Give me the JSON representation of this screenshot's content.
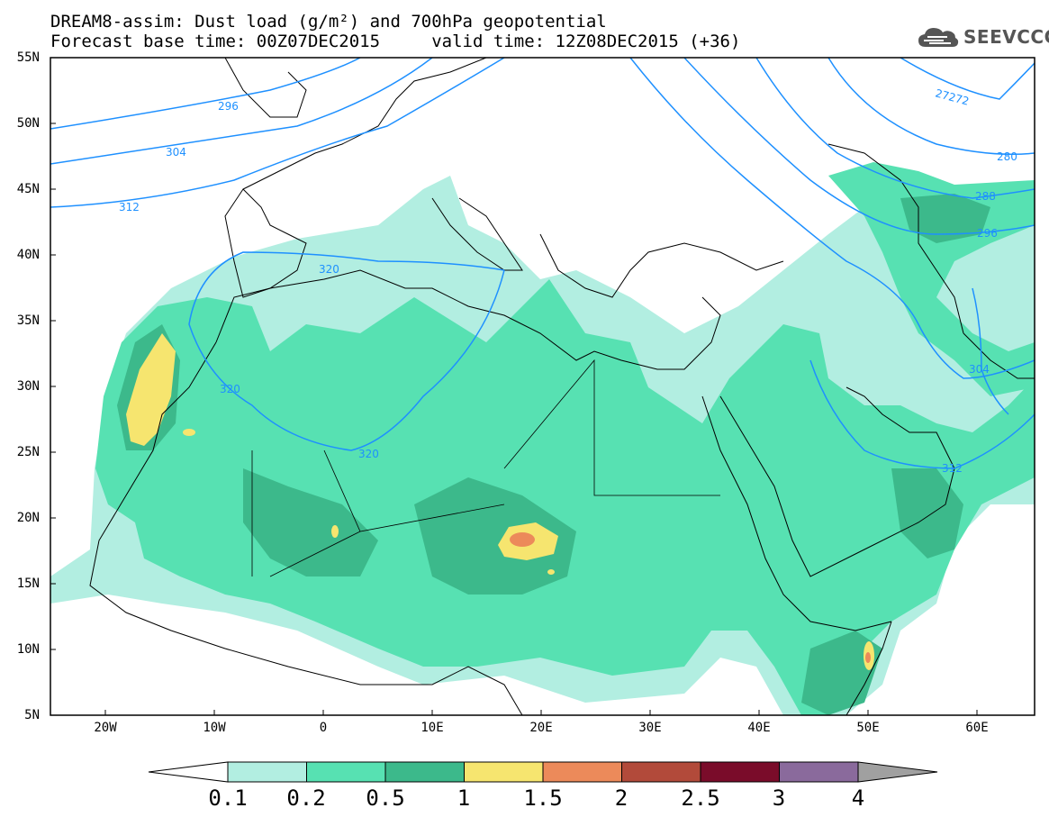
{
  "title": {
    "line1": "DREAM8-assim: Dust load (g/m²) and 700hPa geopotential",
    "line2": "Forecast base time: 00Z07DEC2015     valid time: 12Z08DEC2015 (+36)"
  },
  "logo": {
    "text": "SEEVCCC",
    "icon": "cloud-icon"
  },
  "axes": {
    "lat_labels": [
      "55N",
      "50N",
      "45N",
      "40N",
      "35N",
      "30N",
      "25N",
      "20N",
      "15N",
      "10N",
      "5N"
    ],
    "lon_labels": [
      "20W",
      "10W",
      "0",
      "10E",
      "20E",
      "30E",
      "40E",
      "50E",
      "60E"
    ]
  },
  "contours": {
    "labels": [
      "296",
      "304",
      "312",
      "320",
      "320",
      "320",
      "27272",
      "280",
      "288",
      "296",
      "304",
      "312"
    ],
    "color": "#1e90ff"
  },
  "colorbar": {
    "labels": [
      "0.1",
      "0.2",
      "0.5",
      "1",
      "1.5",
      "2",
      "2.5",
      "3",
      "4"
    ],
    "colors": [
      "#b2eee1",
      "#57e1b2",
      "#3cb98b",
      "#f6e56f",
      "#ec8a5a",
      "#b24a3a",
      "#7a0c2a",
      "#8a6a9c",
      "#a0a0a0"
    ]
  }
}
